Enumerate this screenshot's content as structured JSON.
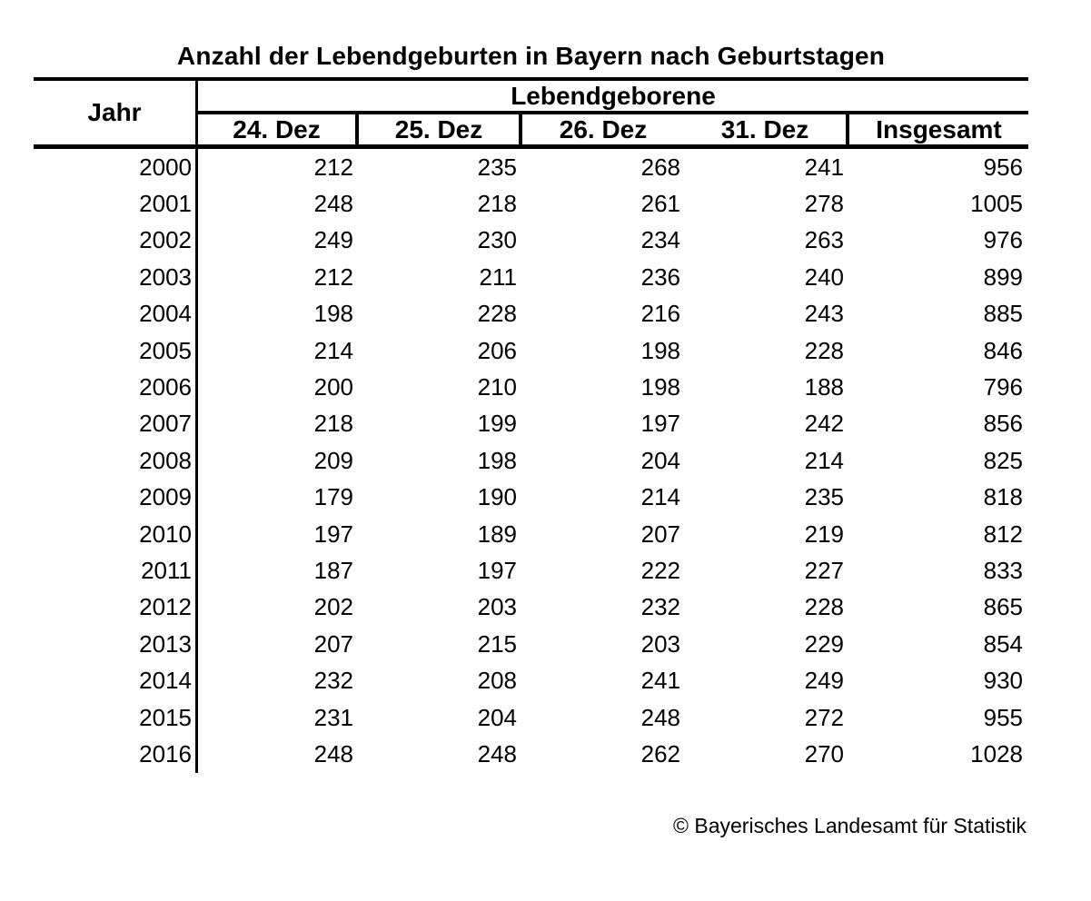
{
  "title": "Anzahl der Lebendgeburten in Bayern nach Geburtstagen",
  "table": {
    "corner_header": "Jahr",
    "group_header": "Lebendgeborene",
    "columns": [
      "24. Dez",
      "25. Dez",
      "26. Dez",
      "31. Dez",
      "Insgesamt"
    ],
    "rows": [
      {
        "year": "2000",
        "values": [
          212,
          235,
          268,
          241
        ],
        "total": 956
      },
      {
        "year": "2001",
        "values": [
          248,
          218,
          261,
          278
        ],
        "total": 1005
      },
      {
        "year": "2002",
        "values": [
          249,
          230,
          234,
          263
        ],
        "total": 976
      },
      {
        "year": "2003",
        "values": [
          212,
          211,
          236,
          240
        ],
        "total": 899
      },
      {
        "year": "2004",
        "values": [
          198,
          228,
          216,
          243
        ],
        "total": 885
      },
      {
        "year": "2005",
        "values": [
          214,
          206,
          198,
          228
        ],
        "total": 846
      },
      {
        "year": "2006",
        "values": [
          200,
          210,
          198,
          188
        ],
        "total": 796
      },
      {
        "year": "2007",
        "values": [
          218,
          199,
          197,
          242
        ],
        "total": 856
      },
      {
        "year": "2008",
        "values": [
          209,
          198,
          204,
          214
        ],
        "total": 825
      },
      {
        "year": "2009",
        "values": [
          179,
          190,
          214,
          235
        ],
        "total": 818
      },
      {
        "year": "2010",
        "values": [
          197,
          189,
          207,
          219
        ],
        "total": 812
      },
      {
        "year": "2011",
        "values": [
          187,
          197,
          222,
          227
        ],
        "total": 833
      },
      {
        "year": "2012",
        "values": [
          202,
          203,
          232,
          228
        ],
        "total": 865
      },
      {
        "year": "2013",
        "values": [
          207,
          215,
          203,
          229
        ],
        "total": 854
      },
      {
        "year": "2014",
        "values": [
          232,
          208,
          241,
          249
        ],
        "total": 930
      },
      {
        "year": "2015",
        "values": [
          231,
          204,
          248,
          272
        ],
        "total": 955
      },
      {
        "year": "2016",
        "values": [
          248,
          248,
          262,
          270
        ],
        "total": 1028
      }
    ]
  },
  "footer": {
    "copyright": "© Bayerisches Landesamt für Statistik"
  },
  "colors": {
    "text": "#000000",
    "background": "#ffffff",
    "line": "#000000"
  }
}
